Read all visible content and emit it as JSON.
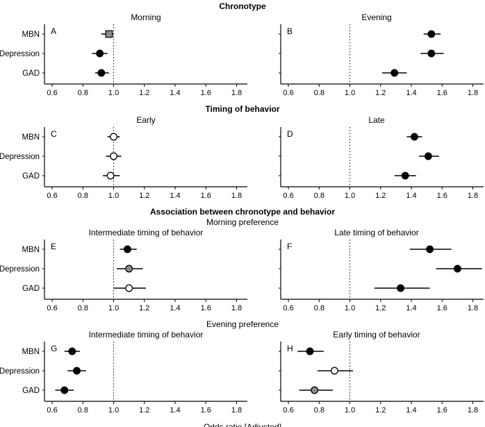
{
  "chart_data": {
    "type": "scatter",
    "chart_kind": "forest-plot-odds-ratios",
    "x_axis": {
      "label": "Odds ratio [Adjusted]",
      "ticks": [
        0.6,
        0.8,
        1.0,
        1.2,
        1.4,
        1.6,
        1.8
      ],
      "range": [
        0.55,
        1.87
      ],
      "reference_line": 1.0
    },
    "y_categories": [
      "MBN",
      "Depression",
      "GAD"
    ],
    "marker_colors": {
      "black": "#000000",
      "gray": "#8c8c8c",
      "white": "#ffffff"
    },
    "sections": [
      {
        "header": "Chronotype",
        "subheader": "",
        "panels": [
          {
            "letter": "A",
            "title": "Morning",
            "points": [
              {
                "outcome": "MBN",
                "or": 0.97,
                "ci_low": 0.92,
                "ci_high": 1.0,
                "marker": "square",
                "fill": "gray"
              },
              {
                "outcome": "Depression",
                "or": 0.91,
                "ci_low": 0.86,
                "ci_high": 0.96,
                "marker": "circle",
                "fill": "black"
              },
              {
                "outcome": "GAD",
                "or": 0.92,
                "ci_low": 0.88,
                "ci_high": 0.97,
                "marker": "circle",
                "fill": "black"
              }
            ]
          },
          {
            "letter": "B",
            "title": "Evening",
            "points": [
              {
                "outcome": "MBN",
                "or": 1.53,
                "ci_low": 1.48,
                "ci_high": 1.59,
                "marker": "circle",
                "fill": "black"
              },
              {
                "outcome": "Depression",
                "or": 1.53,
                "ci_low": 1.46,
                "ci_high": 1.61,
                "marker": "circle",
                "fill": "black"
              },
              {
                "outcome": "GAD",
                "or": 1.29,
                "ci_low": 1.21,
                "ci_high": 1.37,
                "marker": "circle",
                "fill": "black"
              }
            ]
          }
        ]
      },
      {
        "header": "Timing of behavior",
        "subheader": "",
        "panels": [
          {
            "letter": "C",
            "title": "Early",
            "points": [
              {
                "outcome": "MBN",
                "or": 1.0,
                "ci_low": 0.96,
                "ci_high": 1.04,
                "marker": "circle",
                "fill": "white"
              },
              {
                "outcome": "Depression",
                "or": 1.0,
                "ci_low": 0.95,
                "ci_high": 1.05,
                "marker": "circle",
                "fill": "white"
              },
              {
                "outcome": "GAD",
                "or": 0.98,
                "ci_low": 0.93,
                "ci_high": 1.04,
                "marker": "circle",
                "fill": "white"
              }
            ]
          },
          {
            "letter": "D",
            "title": "Late",
            "points": [
              {
                "outcome": "MBN",
                "or": 1.42,
                "ci_low": 1.37,
                "ci_high": 1.47,
                "marker": "circle",
                "fill": "black"
              },
              {
                "outcome": "Depression",
                "or": 1.51,
                "ci_low": 1.45,
                "ci_high": 1.58,
                "marker": "circle",
                "fill": "black"
              },
              {
                "outcome": "GAD",
                "or": 1.36,
                "ci_low": 1.29,
                "ci_high": 1.43,
                "marker": "circle",
                "fill": "black"
              }
            ]
          }
        ]
      },
      {
        "header": "Association between chronotype and behavior",
        "subheader": "Morning preference",
        "panels": [
          {
            "letter": "E",
            "title": "Intermediate timing of behavior",
            "points": [
              {
                "outcome": "MBN",
                "or": 1.09,
                "ci_low": 1.04,
                "ci_high": 1.15,
                "marker": "circle",
                "fill": "black"
              },
              {
                "outcome": "Depression",
                "or": 1.1,
                "ci_low": 1.02,
                "ci_high": 1.19,
                "marker": "circle",
                "fill": "gray"
              },
              {
                "outcome": "GAD",
                "or": 1.1,
                "ci_low": 1.0,
                "ci_high": 1.21,
                "marker": "circle",
                "fill": "white"
              }
            ]
          },
          {
            "letter": "F",
            "title": "Late timing of behavior",
            "points": [
              {
                "outcome": "MBN",
                "or": 1.52,
                "ci_low": 1.39,
                "ci_high": 1.66,
                "marker": "circle",
                "fill": "black"
              },
              {
                "outcome": "Depression",
                "or": 1.7,
                "ci_low": 1.56,
                "ci_high": 1.86,
                "marker": "circle",
                "fill": "black"
              },
              {
                "outcome": "GAD",
                "or": 1.33,
                "ci_low": 1.16,
                "ci_high": 1.52,
                "marker": "circle",
                "fill": "black"
              }
            ]
          }
        ]
      },
      {
        "header": "",
        "subheader": "Evening preference",
        "panels": [
          {
            "letter": "G",
            "title": "Intermediate timing of behavior",
            "points": [
              {
                "outcome": "MBN",
                "or": 0.73,
                "ci_low": 0.68,
                "ci_high": 0.78,
                "marker": "circle",
                "fill": "black"
              },
              {
                "outcome": "Depression",
                "or": 0.76,
                "ci_low": 0.7,
                "ci_high": 0.82,
                "marker": "circle",
                "fill": "black"
              },
              {
                "outcome": "GAD",
                "or": 0.68,
                "ci_low": 0.62,
                "ci_high": 0.74,
                "marker": "circle",
                "fill": "black"
              }
            ]
          },
          {
            "letter": "H",
            "title": "Early timing of behavior",
            "points": [
              {
                "outcome": "MBN",
                "or": 0.74,
                "ci_low": 0.66,
                "ci_high": 0.83,
                "marker": "circle",
                "fill": "black"
              },
              {
                "outcome": "Depression",
                "or": 0.9,
                "ci_low": 0.79,
                "ci_high": 1.02,
                "marker": "circle",
                "fill": "white"
              },
              {
                "outcome": "GAD",
                "or": 0.77,
                "ci_low": 0.67,
                "ci_high": 0.89,
                "marker": "circle",
                "fill": "gray"
              }
            ]
          }
        ]
      }
    ]
  }
}
